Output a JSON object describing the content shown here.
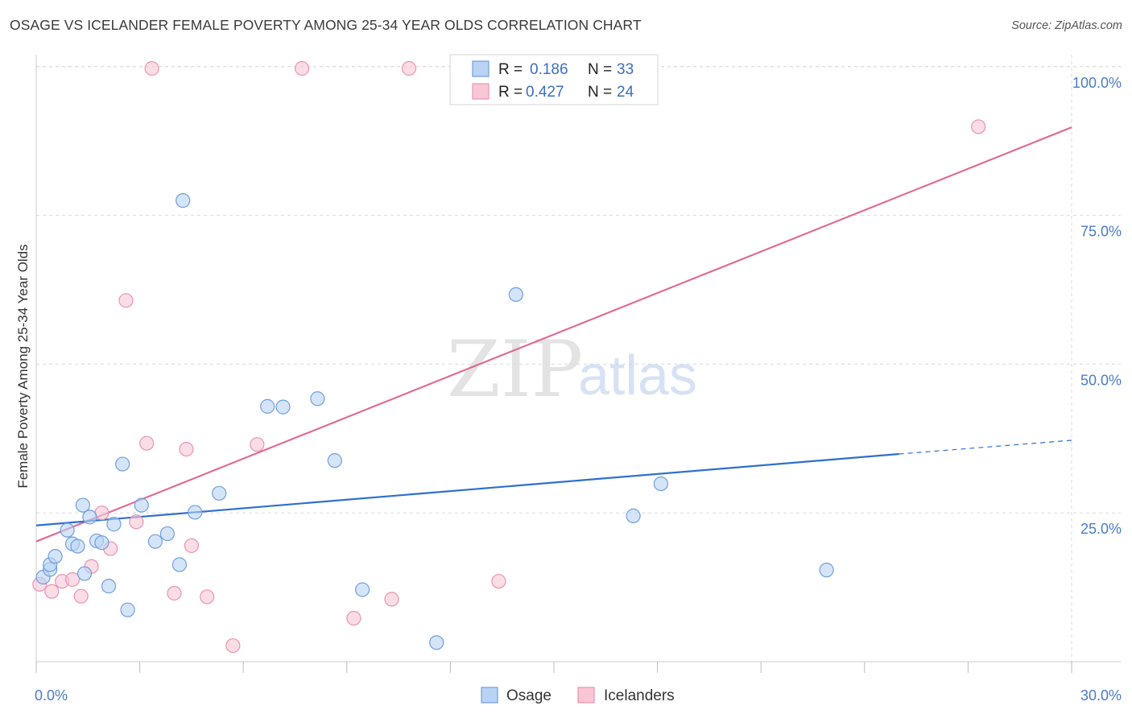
{
  "title": "OSAGE VS ICELANDER FEMALE POVERTY AMONG 25-34 YEAR OLDS CORRELATION CHART",
  "source": "Source: ZipAtlas.com",
  "watermark": {
    "part1": "ZIP",
    "part2": "atlas"
  },
  "colors": {
    "osage_fill": "#b9d3f5",
    "osage_stroke": "#6f9fdc",
    "osage_line": "#2f6fcf",
    "icelanders_fill": "#f9c6d6",
    "icelanders_stroke": "#e994b0",
    "icelanders_line": "#e06d97",
    "grid": "#d9d9d9",
    "tick_label": "#4a7cc9"
  },
  "legend": {
    "rows": [
      {
        "r_label": "R =",
        "r_value": "0.186",
        "n_label": "N =",
        "n_value": "33"
      },
      {
        "r_label": "R =",
        "r_value": "0.427",
        "n_label": "N =",
        "n_value": "24"
      }
    ]
  },
  "bottom_legend": [
    "Osage",
    "Icelanders"
  ],
  "chart_data": {
    "type": "scatter",
    "title": "OSAGE VS ICELANDER FEMALE POVERTY AMONG 25-34 YEAR OLDS CORRELATION CHART",
    "xlabel": "",
    "ylabel": "Female Poverty Among 25-34 Year Olds",
    "xlim": [
      0,
      30
    ],
    "ylim": [
      0,
      102
    ],
    "x_tick_labels": [
      "0.0%",
      "30.0%"
    ],
    "y_ticks": [
      25,
      50,
      75,
      100
    ],
    "y_tick_labels": [
      "25.0%",
      "50.0%",
      "75.0%",
      "100.0%"
    ],
    "grid": true,
    "legend_position": "top-center",
    "series": [
      {
        "name": "Osage",
        "r": 0.186,
        "n": 33,
        "points": [
          [
            0.2,
            14.2
          ],
          [
            0.4,
            15.5
          ],
          [
            0.4,
            16.3
          ],
          [
            0.55,
            17.7
          ],
          [
            0.9,
            22.1
          ],
          [
            1.05,
            19.8
          ],
          [
            1.2,
            19.4
          ],
          [
            1.4,
            14.8
          ],
          [
            1.35,
            26.3
          ],
          [
            1.55,
            24.3
          ],
          [
            1.75,
            20.3
          ],
          [
            1.9,
            20.0
          ],
          [
            2.1,
            12.7
          ],
          [
            2.25,
            23.1
          ],
          [
            2.5,
            33.2
          ],
          [
            2.65,
            8.7
          ],
          [
            3.05,
            26.3
          ],
          [
            3.45,
            20.2
          ],
          [
            3.8,
            21.5
          ],
          [
            4.15,
            16.3
          ],
          [
            4.25,
            77.5
          ],
          [
            4.6,
            25.1
          ],
          [
            5.3,
            28.3
          ],
          [
            6.7,
            42.9
          ],
          [
            7.15,
            42.8
          ],
          [
            8.15,
            44.2
          ],
          [
            8.65,
            33.8
          ],
          [
            9.45,
            12.1
          ],
          [
            11.6,
            3.2
          ],
          [
            13.9,
            61.7
          ],
          [
            17.3,
            24.5
          ],
          [
            18.1,
            29.9
          ],
          [
            22.9,
            15.4
          ]
        ],
        "trend": {
          "x0": 0,
          "y0": 22.9,
          "x1": 25,
          "y1": 34.9,
          "dashed_to_x": 30,
          "dashed_to_y": 37.2
        }
      },
      {
        "name": "Icelanders",
        "r": 0.427,
        "n": 24,
        "points": [
          [
            0.1,
            13.0
          ],
          [
            0.45,
            11.8
          ],
          [
            0.75,
            13.5
          ],
          [
            1.05,
            13.8
          ],
          [
            1.3,
            11.0
          ],
          [
            1.6,
            16.0
          ],
          [
            1.9,
            25.0
          ],
          [
            2.15,
            19.0
          ],
          [
            2.6,
            60.7
          ],
          [
            2.9,
            23.5
          ],
          [
            3.2,
            36.7
          ],
          [
            3.35,
            99.7
          ],
          [
            4.0,
            11.5
          ],
          [
            4.35,
            35.7
          ],
          [
            4.5,
            19.5
          ],
          [
            4.95,
            10.9
          ],
          [
            5.7,
            2.7
          ],
          [
            6.4,
            36.5
          ],
          [
            7.7,
            99.7
          ],
          [
            9.2,
            7.3
          ],
          [
            10.3,
            10.5
          ],
          [
            10.8,
            99.7
          ],
          [
            13.4,
            13.5
          ],
          [
            27.3,
            89.9
          ]
        ],
        "trend": {
          "x0": 0,
          "y0": 20.2,
          "x1": 30,
          "y1": 89.8
        }
      }
    ]
  }
}
